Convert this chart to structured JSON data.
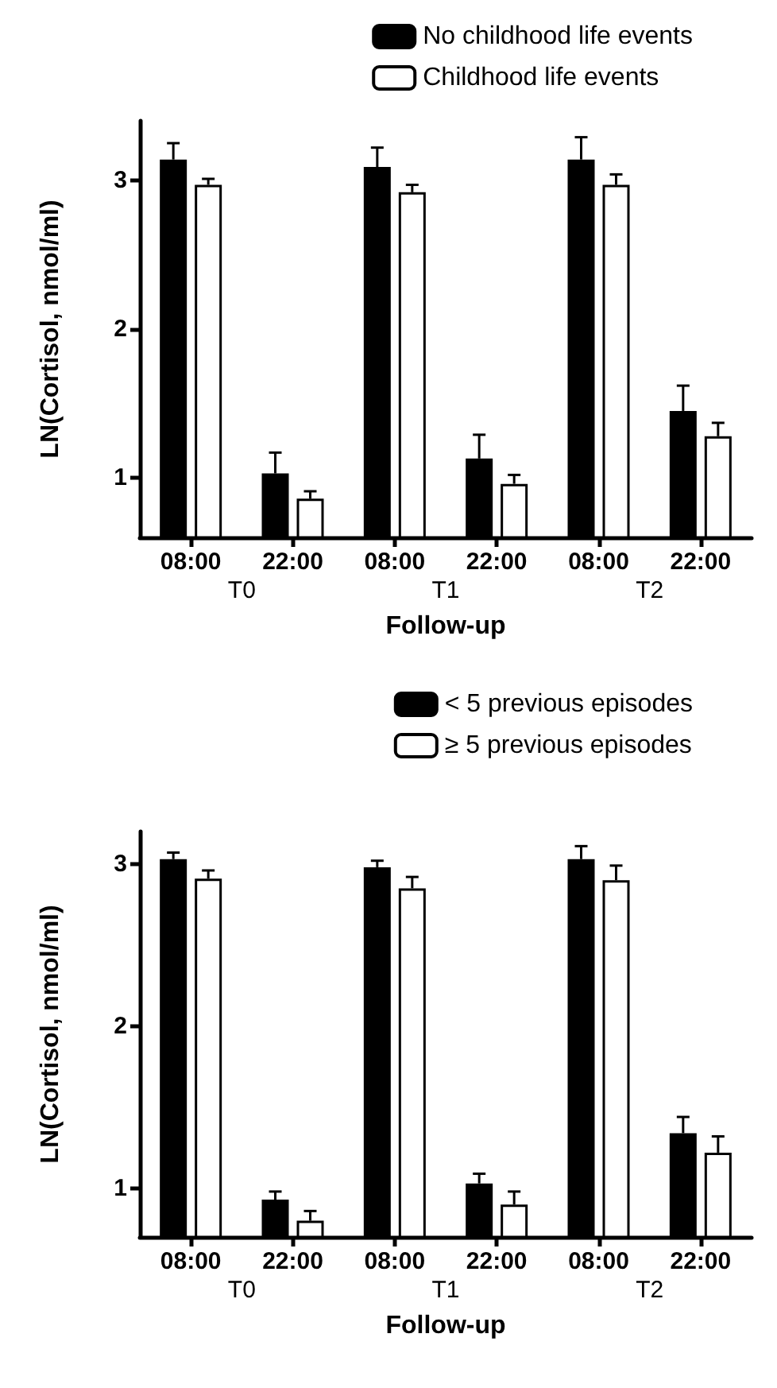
{
  "chart_data": [
    {
      "type": "bar",
      "categories": [
        "08:00",
        "22:00",
        "08:00",
        "22:00",
        "08:00",
        "22:00"
      ],
      "xlabel": "Follow-up",
      "ylabel": "LN(Cortisol, nmol/ml)",
      "annotations": [
        "T0",
        "T1",
        "T2"
      ],
      "ylim": [
        0.6,
        3.4
      ],
      "yticks": [
        1,
        2,
        3
      ],
      "grid": false,
      "legend": "top right",
      "series": [
        {
          "name": "No childhood life events",
          "color": "#000000",
          "values": [
            3.14,
            1.03,
            3.09,
            1.13,
            3.14,
            1.45
          ],
          "errors": [
            [
              3.14,
              3.25
            ],
            [
              1.03,
              1.17
            ],
            [
              3.09,
              3.22
            ],
            [
              1.13,
              1.29
            ],
            [
              3.14,
              3.29
            ],
            [
              1.45,
              1.62
            ]
          ]
        },
        {
          "name": "Childhood life events",
          "color": "#ffffff",
          "values": [
            2.97,
            0.86,
            2.92,
            0.96,
            2.97,
            1.28
          ],
          "errors": [
            [
              2.97,
              3.01
            ],
            [
              0.86,
              0.91
            ],
            [
              2.92,
              2.97
            ],
            [
              0.96,
              1.02
            ],
            [
              2.97,
              3.04
            ],
            [
              1.28,
              1.37
            ]
          ]
        }
      ]
    },
    {
      "type": "bar",
      "categories": [
        "08:00",
        "22:00",
        "08:00",
        "22:00",
        "08:00",
        "22:00"
      ],
      "xlabel": "Follow-up",
      "ylabel": "LN(Cortisol, nmol/ml)",
      "annotations": [
        "T0",
        "T1",
        "T2"
      ],
      "ylim": [
        0.7,
        3.2
      ],
      "yticks": [
        1,
        2,
        3
      ],
      "grid": false,
      "legend": "top right",
      "series": [
        {
          "name": "< 5 previous episodes",
          "color": "#000000",
          "values": [
            3.03,
            0.93,
            2.98,
            1.03,
            3.03,
            1.34
          ],
          "errors": [
            [
              3.03,
              3.07
            ],
            [
              0.93,
              0.98
            ],
            [
              2.98,
              3.02
            ],
            [
              1.03,
              1.09
            ],
            [
              3.03,
              3.11
            ],
            [
              1.34,
              1.44
            ]
          ]
        },
        {
          "name": "≥ 5 previous episodes",
          "color": "#ffffff",
          "values": [
            2.91,
            0.8,
            2.85,
            0.9,
            2.9,
            1.22
          ],
          "errors": [
            [
              2.91,
              2.96
            ],
            [
              0.8,
              0.86
            ],
            [
              2.85,
              2.92
            ],
            [
              0.9,
              0.98
            ],
            [
              2.9,
              2.99
            ],
            [
              1.22,
              1.32
            ]
          ]
        }
      ]
    }
  ]
}
